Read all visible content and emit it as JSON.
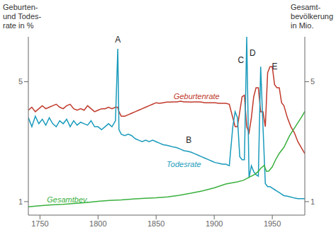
{
  "chart_data": {
    "type": "line",
    "ylabel": "Geburten-\nund Todes-\nrate in %",
    "y2label": "Gesamt-\nbevölkerung\nin Mio.",
    "xlim": [
      1740,
      1978
    ],
    "xticks": [
      1750,
      1800,
      1850,
      1900,
      1950
    ],
    "ylim": [
      0.55,
      6.5
    ],
    "yticks": [
      1,
      5
    ],
    "y2lim": [
      0.55,
      6.5
    ],
    "y2ticks": [
      1,
      5
    ],
    "series": [
      {
        "color": "#c0392b",
        "x": [
          1740,
          1743,
          1746,
          1749,
          1752,
          1755,
          1758,
          1761,
          1764,
          1767,
          1770,
          1773,
          1776,
          1779,
          1782,
          1785,
          1788,
          1791,
          1794,
          1797,
          1800,
          1803,
          1806,
          1809,
          1812,
          1815,
          1817,
          1818,
          1820,
          1823,
          1826,
          1829,
          1832,
          1835,
          1838,
          1841,
          1844,
          1847,
          1850,
          1853,
          1856,
          1859,
          1862,
          1865,
          1868,
          1871,
          1874,
          1877,
          1880,
          1883,
          1886,
          1889,
          1892,
          1895,
          1898,
          1901,
          1904,
          1907,
          1910,
          1913,
          1916,
          1918,
          1920,
          1922,
          1924,
          1926,
          1928,
          1930,
          1932,
          1934,
          1936,
          1938,
          1940,
          1942,
          1944,
          1946,
          1948,
          1950,
          1952,
          1954,
          1956,
          1958,
          1960,
          1963,
          1966,
          1969,
          1972,
          1975,
          1978
        ],
        "values": [
          4.05,
          4.15,
          4.0,
          4.1,
          4.2,
          4.1,
          4.15,
          4.2,
          4.25,
          4.15,
          4.1,
          4.2,
          4.25,
          4.1,
          4.05,
          4.1,
          4.05,
          4.2,
          4.1,
          4.0,
          4.05,
          4.1,
          4.1,
          4.15,
          4.1,
          4.15,
          4.15,
          4.0,
          3.85,
          3.85,
          3.9,
          3.95,
          4.0,
          4.05,
          4.1,
          4.15,
          4.2,
          4.25,
          4.3,
          4.28,
          4.3,
          4.32,
          4.32,
          4.33,
          4.33,
          4.35,
          4.33,
          4.33,
          4.32,
          4.33,
          4.33,
          4.32,
          4.3,
          4.3,
          4.3,
          4.3,
          4.28,
          4.28,
          4.28,
          4.25,
          3.8,
          3.5,
          3.5,
          4.0,
          4.5,
          4.55,
          3.5,
          3.3,
          3.8,
          4.5,
          4.8,
          4.8,
          4.0,
          4.0,
          3.5,
          5.3,
          5.5,
          5.5,
          4.9,
          4.8,
          4.8,
          4.3,
          4.2,
          3.8,
          3.5,
          3.3,
          3.0,
          2.8,
          2.6
        ]
      },
      {
        "color": "#1a9bbc",
        "x": [
          1740,
          1743,
          1746,
          1749,
          1752,
          1755,
          1758,
          1761,
          1764,
          1767,
          1770,
          1773,
          1776,
          1779,
          1782,
          1785,
          1788,
          1791,
          1794,
          1797,
          1800,
          1803,
          1806,
          1809,
          1812,
          1815,
          1817,
          1818,
          1820,
          1823,
          1826,
          1829,
          1832,
          1835,
          1838,
          1841,
          1844,
          1847,
          1850,
          1853,
          1856,
          1859,
          1862,
          1865,
          1868,
          1871,
          1874,
          1877,
          1880,
          1883,
          1886,
          1889,
          1892,
          1895,
          1898,
          1901,
          1904,
          1907,
          1910,
          1913,
          1916,
          1918,
          1920,
          1922,
          1924,
          1926,
          1928,
          1930,
          1932,
          1934,
          1936,
          1938,
          1940,
          1942,
          1944,
          1946,
          1948,
          1950,
          1952,
          1954,
          1956,
          1958,
          1960,
          1963,
          1966,
          1969,
          1972,
          1975,
          1978
        ],
        "values": [
          3.8,
          3.5,
          3.85,
          3.6,
          3.75,
          3.55,
          3.8,
          3.6,
          3.5,
          3.7,
          3.6,
          3.75,
          3.5,
          3.7,
          3.55,
          3.65,
          3.6,
          3.55,
          3.7,
          3.5,
          3.5,
          3.4,
          3.5,
          3.6,
          3.5,
          3.7,
          6.1,
          3.4,
          3.25,
          3.2,
          3.25,
          3.2,
          3.1,
          3.05,
          3.0,
          3.05,
          3.0,
          3.05,
          3.0,
          2.95,
          2.9,
          2.88,
          2.85,
          2.82,
          2.8,
          2.75,
          2.7,
          2.68,
          2.65,
          2.6,
          2.55,
          2.5,
          2.45,
          2.4,
          2.35,
          2.3,
          2.28,
          2.25,
          2.25,
          2.2,
          3.5,
          4.0,
          3.8,
          2.5,
          2.4,
          2.4,
          6.5,
          1.8,
          2.2,
          2.0,
          1.9,
          1.85,
          5.5,
          3.5,
          1.6,
          1.5,
          1.5,
          1.45,
          1.4,
          1.35,
          1.3,
          1.25,
          1.2,
          1.18,
          1.15,
          1.12,
          1.1,
          1.1,
          1.1
        ]
      },
      {
        "color": "#3ab03e",
        "axis": "y2",
        "x": [
          1740,
          1750,
          1760,
          1770,
          1780,
          1790,
          1800,
          1810,
          1820,
          1830,
          1840,
          1850,
          1860,
          1870,
          1880,
          1890,
          1900,
          1910,
          1920,
          1925,
          1930,
          1935,
          1938,
          1940,
          1943,
          1945,
          1947,
          1950,
          1953,
          1956,
          1960,
          1965,
          1970,
          1975,
          1978
        ],
        "values": [
          0.83,
          0.86,
          0.89,
          0.91,
          0.94,
          0.97,
          1.01,
          1.04,
          1.06,
          1.09,
          1.11,
          1.13,
          1.16,
          1.21,
          1.28,
          1.36,
          1.46,
          1.59,
          1.66,
          1.71,
          1.81,
          1.91,
          2.01,
          2.11,
          2.21,
          2.01,
          2.02,
          2.16,
          2.41,
          2.61,
          2.81,
          3.21,
          3.51,
          3.81,
          4.01
        ]
      }
    ],
    "annotations": [
      {
        "text": "A",
        "x": 1817,
        "y": 6.2
      },
      {
        "text": "B",
        "x": 1878,
        "y": 2.85
      },
      {
        "text": "C",
        "x": 1923,
        "y": 5.5
      },
      {
        "text": "D",
        "x": 1933,
        "y": 5.75
      },
      {
        "text": "E",
        "x": 1952,
        "y": 5.3
      },
      {
        "text": "Geburtenrate",
        "x": 1862,
        "y": 4.52,
        "color": "#c0392b"
      },
      {
        "text": "Todesrate",
        "x": 1856,
        "y": 2.25,
        "color": "#1a9bbc"
      },
      {
        "text": "Gesamtbev.",
        "x": 1753,
        "y": 1.06,
        "color": "#3ab03e"
      }
    ]
  }
}
